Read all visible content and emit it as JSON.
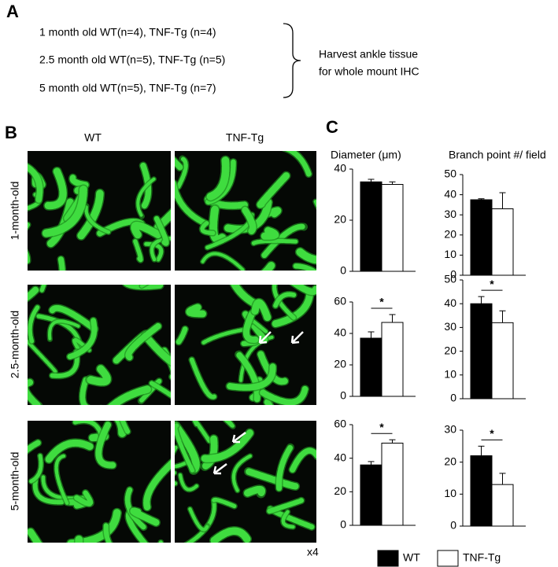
{
  "panel_a": {
    "label": "A",
    "groups": [
      "1 month old WT(n=4), TNF-Tg (n=4)",
      "2.5 month old WT(n=5), TNF-Tg (n=5)",
      "5 month old WT(n=5), TNF-Tg (n=7)"
    ],
    "outcome": [
      "Harvest ankle tissue",
      "for whole mount IHC"
    ]
  },
  "panel_b": {
    "label": "B",
    "columns": [
      "WT",
      "TNF-Tg"
    ],
    "rows": [
      "1-month-old",
      "2.5-month-old",
      "5-month-old"
    ],
    "magnification": "x4"
  },
  "chart_data": {
    "type": "bar",
    "label": "C",
    "series": [
      {
        "name": "WT",
        "color": "#000000"
      },
      {
        "name": "TNF-Tg",
        "color": "#ffffff"
      }
    ],
    "panels": [
      {
        "title": "Diameter (μm)",
        "ylim": [
          0,
          40
        ],
        "yticks": [
          0,
          20,
          40
        ],
        "values": [
          35,
          34
        ],
        "errors": [
          1,
          1
        ]
      },
      {
        "title": "Branch point #/ field",
        "ylim": [
          0,
          50
        ],
        "yticks": [
          0,
          10,
          20,
          30,
          40,
          50
        ],
        "values": [
          37.5,
          33
        ],
        "errors": [
          0.5,
          8
        ]
      },
      {
        "ylim": [
          0,
          60
        ],
        "yticks": [
          0,
          20,
          40,
          60
        ],
        "values": [
          37,
          47
        ],
        "errors": [
          4,
          5
        ],
        "annotation": "*"
      },
      {
        "ylim": [
          0,
          50
        ],
        "yticks": [
          0,
          10,
          20,
          30,
          40,
          50
        ],
        "values": [
          40,
          32
        ],
        "errors": [
          3,
          5
        ],
        "annotation": "*"
      },
      {
        "ylim": [
          0,
          60
        ],
        "yticks": [
          0,
          20,
          40,
          60
        ],
        "values": [
          36,
          49
        ],
        "errors": [
          2,
          2
        ],
        "annotation": "*"
      },
      {
        "ylim": [
          0,
          30
        ],
        "yticks": [
          0,
          10,
          20,
          30
        ],
        "values": [
          22,
          13
        ],
        "errors": [
          3,
          3.5
        ],
        "annotation": "*"
      }
    ]
  }
}
